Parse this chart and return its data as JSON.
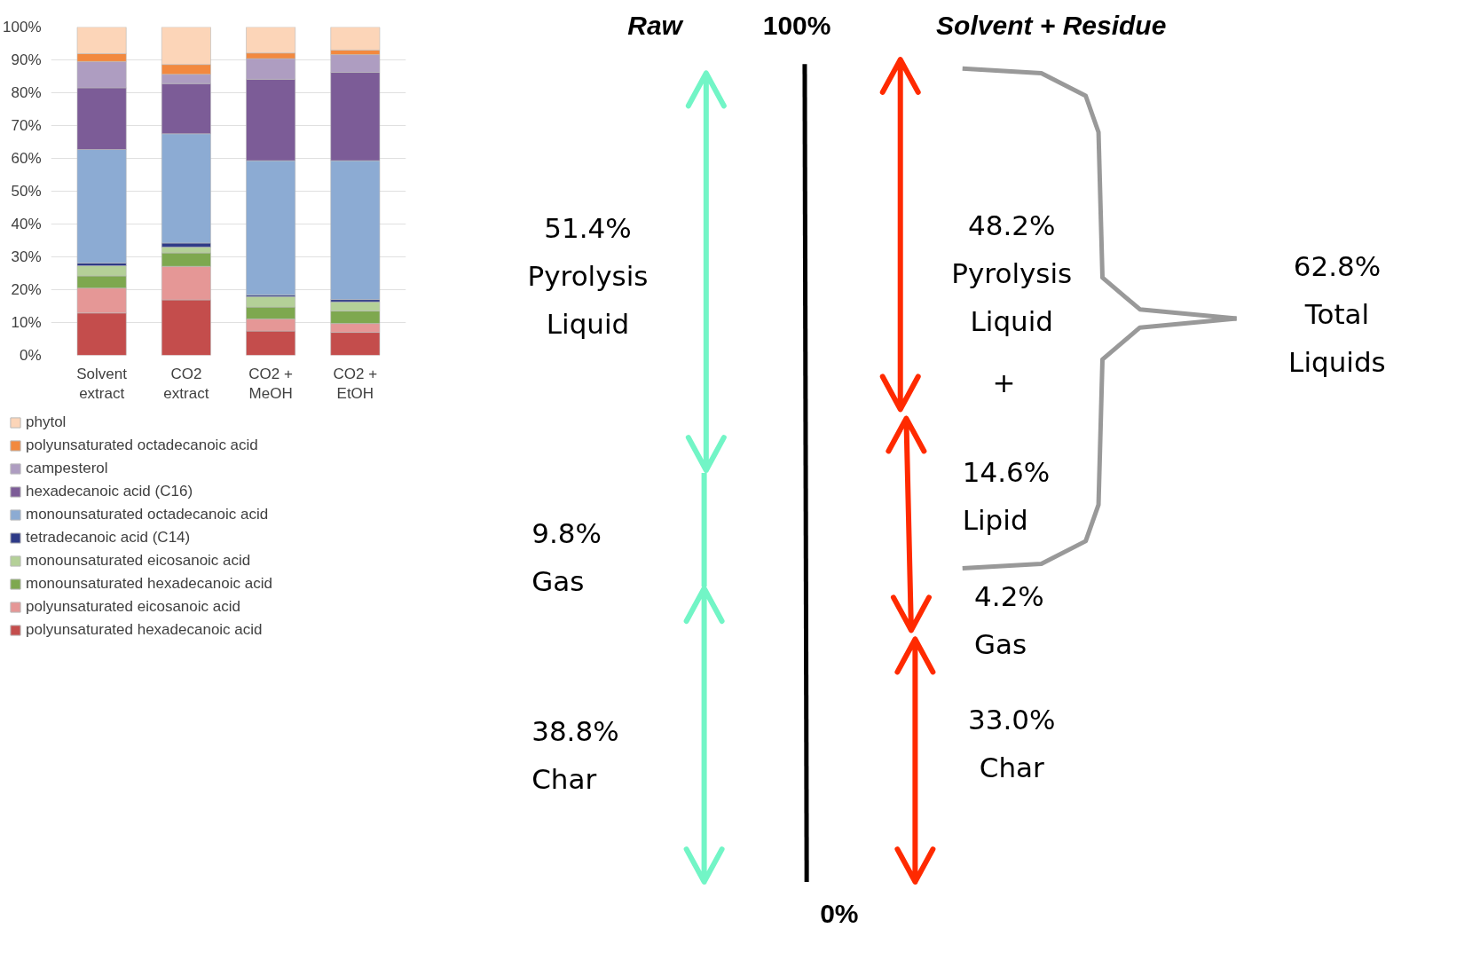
{
  "chart_data": [
    {
      "type": "bar",
      "stacked": true,
      "categories": [
        "Solvent\nextract",
        "CO2\nextract",
        "CO2 +\nMeOH",
        "CO2 +\nEtOH"
      ],
      "ylim": [
        0,
        100
      ],
      "yticks": [
        {
          "value": 0,
          "label": "0%"
        },
        {
          "value": 10,
          "label": "10%"
        },
        {
          "value": 20,
          "label": "20%"
        },
        {
          "value": 30,
          "label": "30%"
        },
        {
          "value": 40,
          "label": "40%"
        },
        {
          "value": 50,
          "label": "50%"
        },
        {
          "value": 60,
          "label": "60%"
        },
        {
          "value": 70,
          "label": "70%"
        },
        {
          "value": 80,
          "label": "80%"
        },
        {
          "value": 90,
          "label": "90%"
        },
        {
          "value": 100,
          "label": "100%"
        }
      ],
      "grid": "y",
      "legend": "bottom",
      "series": [
        {
          "name": "polyunsaturated hexadecanoic acid",
          "color": "#c44d4c",
          "values": [
            12.9,
            16.9,
            7.4,
            7.0
          ]
        },
        {
          "name": "polyunsaturated eicosanoic acid",
          "color": "#e59796",
          "values": [
            7.6,
            10.2,
            3.7,
            2.7
          ]
        },
        {
          "name": "monounsaturated hexadecanoic acid",
          "color": "#7ea84f",
          "values": [
            3.7,
            4.1,
            3.6,
            3.8
          ]
        },
        {
          "name": "monounsaturated eicosanoic acid",
          "color": "#b4d098",
          "values": [
            3.1,
            1.8,
            3.2,
            2.8
          ]
        },
        {
          "name": "tetradecanoic acid (C14)",
          "color": "#2e3a87",
          "values": [
            0.8,
            1.2,
            0.5,
            0.7
          ]
        },
        {
          "name": "monounsaturated octadecanoic acid",
          "color": "#8cabd3",
          "values": [
            34.6,
            33.3,
            40.9,
            42.3
          ]
        },
        {
          "name": "hexadecanoic acid (C16)",
          "color": "#7c5c97",
          "values": [
            18.8,
            15.3,
            24.8,
            26.9
          ]
        },
        {
          "name": "campesterol",
          "color": "#ae9dc1",
          "values": [
            8.0,
            2.8,
            6.3,
            5.4
          ]
        },
        {
          "name": "polyunsaturated octadecanoic acid",
          "color": "#f2893f",
          "values": [
            2.4,
            3.0,
            1.7,
            1.4
          ]
        },
        {
          "name": "phytol",
          "color": "#fcd5b8",
          "values": [
            8.1,
            11.4,
            7.9,
            7.0
          ]
        }
      ]
    },
    {
      "type": "other",
      "annotations": [
        "Raw",
        "100%",
        "Solvent + Residue",
        "0%",
        "51.4%\nPyrolysis\nLiquid",
        "9.8%\nGas",
        "38.8%\nChar",
        "48.2%\nPyrolysis\nLiquid",
        "+",
        "14.6%\nLipid",
        "4.2%\nGas",
        "33.0%\nChar",
        "62.8%\nTotal\nLiquids"
      ]
    }
  ]
}
